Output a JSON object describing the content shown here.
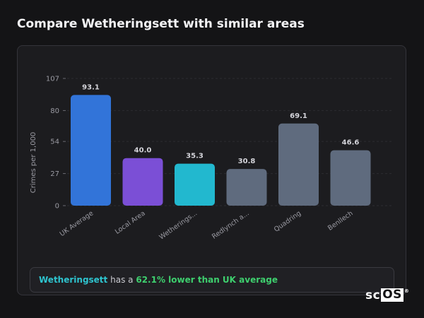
{
  "page": {
    "title": "Compare Wetheringsett with similar areas"
  },
  "chart_data": {
    "type": "bar",
    "title": "",
    "xlabel": "",
    "ylabel": "Crimes per 1,000",
    "ylim": [
      0,
      107
    ],
    "yticks": [
      0,
      27,
      54,
      80,
      107
    ],
    "grid": true,
    "categories": [
      "UK Average",
      "Local Area",
      "Wetherings...",
      "Redlynch a...",
      "Quadring",
      "Benllech"
    ],
    "values": [
      93.1,
      40.0,
      35.3,
      30.8,
      69.1,
      46.6
    ],
    "value_labels": [
      "93.1",
      "40.0",
      "35.3",
      "30.8",
      "69.1",
      "46.6"
    ],
    "bar_colors": [
      "#3274d9",
      "#7b4fd6",
      "#22b8cf",
      "#5f6b7e",
      "#5f6b7e",
      "#5f6b7e"
    ]
  },
  "summary": {
    "area_name": "Wetheringsett",
    "connector": "has a",
    "comparison": "62.1% lower than UK average"
  },
  "logo": {
    "text_left": "sc",
    "text_boxed": "OS",
    "mark": "®"
  }
}
